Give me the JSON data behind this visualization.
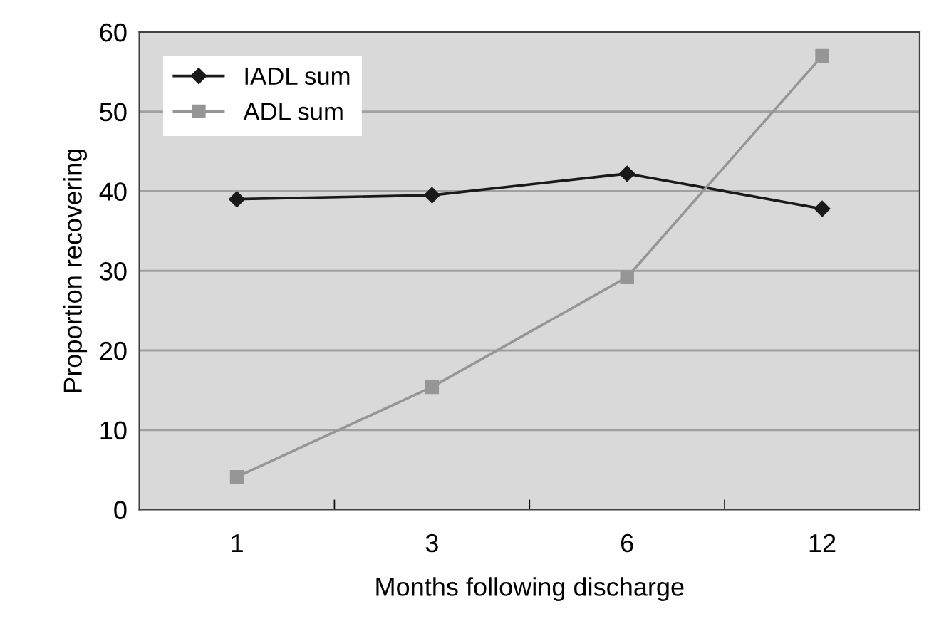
{
  "chart_data": {
    "type": "line",
    "xlabel": "Months following discharge",
    "ylabel": "Proportion recovering",
    "categories": [
      "1",
      "3",
      "6",
      "12"
    ],
    "series": [
      {
        "name": "IADL sum",
        "color": "#1a1a1a",
        "marker": "diamond",
        "values": [
          39.0,
          39.5,
          42.2,
          37.8
        ]
      },
      {
        "name": "ADL sum",
        "color": "#969696",
        "marker": "square",
        "values": [
          4.1,
          15.4,
          29.2,
          57.0
        ]
      }
    ],
    "ylim": [
      0,
      60
    ],
    "yticks": [
      0,
      10,
      20,
      30,
      40,
      50,
      60
    ],
    "grid": "y",
    "legend": "top left"
  }
}
